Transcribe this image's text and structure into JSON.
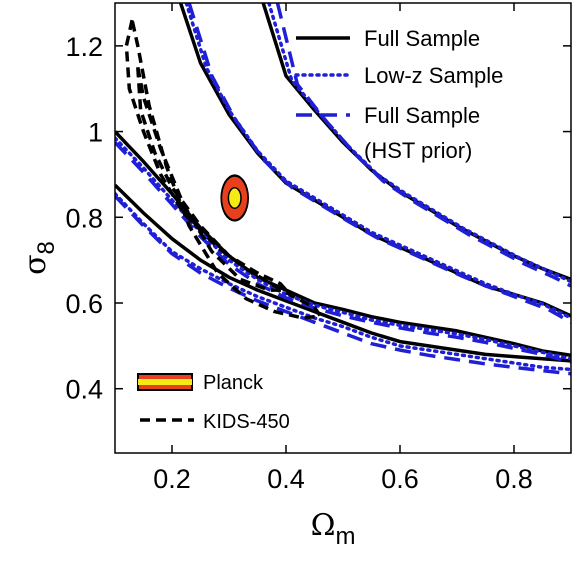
{
  "chart_data": {
    "type": "line",
    "xlabel": "Ωm",
    "ylabel": "σ8",
    "xlim": [
      0.1,
      0.9
    ],
    "ylim": [
      0.25,
      1.3
    ],
    "xticks": [
      0.2,
      0.4,
      0.6,
      0.8
    ],
    "yticks": [
      0.4,
      0.6,
      0.8,
      1.0,
      1.2
    ],
    "xtick_labels": [
      "0.2",
      "0.4",
      "0.6",
      "0.8"
    ],
    "ytick_labels": [
      "0.4",
      "0.6",
      "0.8",
      "1",
      "1.2"
    ],
    "grid": false,
    "legend_top": {
      "placement": "top-right",
      "entries": [
        {
          "label": "Full Sample",
          "line": "solid",
          "color": "#000000"
        },
        {
          "label": "Low-z Sample",
          "line": "dotted",
          "color": "#1f1fd6"
        },
        {
          "label": "Full Sample",
          "label2": "(HST prior)",
          "line": "dashed",
          "color": "#1f1fd6"
        }
      ]
    },
    "legend_bottom": {
      "placement": "bottom-left",
      "entries": [
        {
          "label": "Planck",
          "line": "filled-band",
          "colors": [
            "#e8401c",
            "#f5ea14"
          ]
        },
        {
          "label": "KIDS-450",
          "line": "dashed",
          "color": "#000000"
        }
      ]
    },
    "series": [
      {
        "name": "Full Sample",
        "style": "solid",
        "color": "#000000",
        "contours": [
          [
            [
              0.1,
              0.875
            ],
            [
              0.15,
              0.81
            ],
            [
              0.2,
              0.75
            ],
            [
              0.25,
              0.7
            ],
            [
              0.3,
              0.66
            ],
            [
              0.35,
              0.63
            ],
            [
              0.4,
              0.605
            ],
            [
              0.45,
              0.58
            ],
            [
              0.5,
              0.555
            ],
            [
              0.55,
              0.53
            ],
            [
              0.6,
              0.51
            ],
            [
              0.65,
              0.5
            ],
            [
              0.7,
              0.49
            ],
            [
              0.75,
              0.48
            ],
            [
              0.8,
              0.475
            ],
            [
              0.85,
              0.47
            ],
            [
              0.9,
              0.465
            ]
          ],
          [
            [
              0.1,
              1.0
            ],
            [
              0.15,
              0.93
            ],
            [
              0.2,
              0.855
            ],
            [
              0.25,
              0.775
            ],
            [
              0.3,
              0.71
            ],
            [
              0.35,
              0.66
            ],
            [
              0.4,
              0.63
            ],
            [
              0.45,
              0.6
            ],
            [
              0.5,
              0.585
            ],
            [
              0.55,
              0.568
            ],
            [
              0.6,
              0.555
            ],
            [
              0.65,
              0.545
            ],
            [
              0.7,
              0.535
            ],
            [
              0.75,
              0.52
            ],
            [
              0.8,
              0.505
            ],
            [
              0.85,
              0.488
            ],
            [
              0.9,
              0.478
            ]
          ],
          [
            [
              0.215,
              1.3
            ],
            [
              0.25,
              1.16
            ],
            [
              0.3,
              1.04
            ],
            [
              0.35,
              0.95
            ],
            [
              0.4,
              0.88
            ],
            [
              0.45,
              0.84
            ],
            [
              0.5,
              0.8
            ],
            [
              0.55,
              0.76
            ],
            [
              0.6,
              0.73
            ],
            [
              0.65,
              0.7
            ],
            [
              0.7,
              0.67
            ],
            [
              0.75,
              0.64
            ],
            [
              0.8,
              0.62
            ],
            [
              0.85,
              0.6
            ],
            [
              0.9,
              0.57
            ]
          ],
          [
            [
              0.36,
              1.3
            ],
            [
              0.4,
              1.13
            ],
            [
              0.45,
              1.05
            ],
            [
              0.5,
              0.975
            ],
            [
              0.55,
              0.91
            ],
            [
              0.6,
              0.86
            ],
            [
              0.65,
              0.82
            ],
            [
              0.7,
              0.78
            ],
            [
              0.75,
              0.745
            ],
            [
              0.8,
              0.71
            ],
            [
              0.85,
              0.68
            ],
            [
              0.9,
              0.655
            ]
          ]
        ]
      },
      {
        "name": "Low-z Sample",
        "style": "dotted",
        "color": "#1f1fd6",
        "contours": [
          [
            [
              0.1,
              0.855
            ],
            [
              0.15,
              0.785
            ],
            [
              0.2,
              0.72
            ],
            [
              0.25,
              0.68
            ],
            [
              0.3,
              0.645
            ],
            [
              0.35,
              0.615
            ],
            [
              0.4,
              0.59
            ],
            [
              0.45,
              0.565
            ],
            [
              0.5,
              0.545
            ],
            [
              0.55,
              0.52
            ],
            [
              0.6,
              0.5
            ],
            [
              0.65,
              0.49
            ],
            [
              0.7,
              0.48
            ],
            [
              0.75,
              0.47
            ],
            [
              0.8,
              0.46
            ],
            [
              0.85,
              0.45
            ],
            [
              0.9,
              0.445
            ]
          ],
          [
            [
              0.1,
              0.985
            ],
            [
              0.15,
              0.915
            ],
            [
              0.2,
              0.84
            ],
            [
              0.25,
              0.765
            ],
            [
              0.3,
              0.7
            ],
            [
              0.35,
              0.655
            ],
            [
              0.4,
              0.62
            ],
            [
              0.45,
              0.595
            ],
            [
              0.5,
              0.578
            ],
            [
              0.55,
              0.56
            ],
            [
              0.6,
              0.548
            ],
            [
              0.65,
              0.538
            ],
            [
              0.7,
              0.528
            ],
            [
              0.75,
              0.515
            ],
            [
              0.8,
              0.5
            ],
            [
              0.85,
              0.485
            ],
            [
              0.9,
              0.47
            ]
          ],
          [
            [
              0.225,
              1.3
            ],
            [
              0.26,
              1.15
            ],
            [
              0.3,
              1.05
            ],
            [
              0.35,
              0.955
            ],
            [
              0.4,
              0.885
            ],
            [
              0.45,
              0.845
            ],
            [
              0.5,
              0.805
            ],
            [
              0.55,
              0.765
            ],
            [
              0.6,
              0.735
            ],
            [
              0.65,
              0.705
            ],
            [
              0.7,
              0.675
            ],
            [
              0.75,
              0.645
            ],
            [
              0.8,
              0.62
            ],
            [
              0.85,
              0.598
            ],
            [
              0.9,
              0.565
            ]
          ],
          [
            [
              0.37,
              1.3
            ],
            [
              0.41,
              1.12
            ],
            [
              0.46,
              1.04
            ],
            [
              0.51,
              0.965
            ],
            [
              0.56,
              0.9
            ],
            [
              0.61,
              0.855
            ],
            [
              0.66,
              0.815
            ],
            [
              0.71,
              0.775
            ],
            [
              0.76,
              0.74
            ],
            [
              0.81,
              0.705
            ],
            [
              0.86,
              0.675
            ],
            [
              0.9,
              0.65
            ]
          ]
        ]
      },
      {
        "name": "Full Sample (HST prior)",
        "style": "dashed",
        "color": "#1f1fd6",
        "contours": [
          [
            [
              0.1,
              0.85
            ],
            [
              0.15,
              0.78
            ],
            [
              0.2,
              0.715
            ],
            [
              0.25,
              0.67
            ],
            [
              0.3,
              0.635
            ],
            [
              0.35,
              0.605
            ],
            [
              0.4,
              0.58
            ],
            [
              0.45,
              0.555
            ],
            [
              0.5,
              0.53
            ],
            [
              0.55,
              0.505
            ],
            [
              0.6,
              0.49
            ],
            [
              0.65,
              0.478
            ],
            [
              0.7,
              0.468
            ],
            [
              0.75,
              0.458
            ],
            [
              0.8,
              0.45
            ],
            [
              0.85,
              0.442
            ],
            [
              0.9,
              0.435
            ]
          ],
          [
            [
              0.1,
              0.975
            ],
            [
              0.15,
              0.905
            ],
            [
              0.2,
              0.83
            ],
            [
              0.25,
              0.755
            ],
            [
              0.3,
              0.69
            ],
            [
              0.35,
              0.645
            ],
            [
              0.4,
              0.612
            ],
            [
              0.45,
              0.588
            ],
            [
              0.5,
              0.57
            ],
            [
              0.55,
              0.555
            ],
            [
              0.6,
              0.542
            ],
            [
              0.65,
              0.53
            ],
            [
              0.7,
              0.52
            ],
            [
              0.75,
              0.508
            ],
            [
              0.8,
              0.494
            ],
            [
              0.85,
              0.48
            ],
            [
              0.9,
              0.462
            ]
          ],
          [
            [
              0.23,
              1.3
            ],
            [
              0.27,
              1.13
            ],
            [
              0.31,
              1.03
            ],
            [
              0.36,
              0.935
            ],
            [
              0.41,
              0.87
            ],
            [
              0.46,
              0.83
            ],
            [
              0.51,
              0.79
            ],
            [
              0.56,
              0.752
            ],
            [
              0.61,
              0.722
            ],
            [
              0.66,
              0.692
            ],
            [
              0.71,
              0.662
            ],
            [
              0.76,
              0.635
            ],
            [
              0.81,
              0.61
            ],
            [
              0.86,
              0.585
            ],
            [
              0.9,
              0.555
            ]
          ],
          [
            [
              0.385,
              1.3
            ],
            [
              0.42,
              1.11
            ],
            [
              0.47,
              1.025
            ],
            [
              0.52,
              0.95
            ],
            [
              0.57,
              0.885
            ],
            [
              0.62,
              0.84
            ],
            [
              0.67,
              0.8
            ],
            [
              0.72,
              0.76
            ],
            [
              0.77,
              0.725
            ],
            [
              0.82,
              0.69
            ],
            [
              0.87,
              0.66
            ],
            [
              0.9,
              0.64
            ]
          ]
        ]
      },
      {
        "name": "KIDS-450",
        "style": "dashed",
        "color": "#000000",
        "contours": [
          [
            [
              0.13,
              1.26
            ],
            [
              0.12,
              1.2
            ],
            [
              0.125,
              1.1
            ],
            [
              0.15,
              1.0
            ],
            [
              0.18,
              0.9
            ],
            [
              0.22,
              0.81
            ],
            [
              0.28,
              0.73
            ],
            [
              0.33,
              0.68
            ],
            [
              0.38,
              0.64
            ],
            [
              0.42,
              0.61
            ],
            [
              0.45,
              0.59
            ],
            [
              0.46,
              0.57
            ],
            [
              0.43,
              0.565
            ],
            [
              0.38,
              0.58
            ],
            [
              0.33,
              0.61
            ],
            [
              0.28,
              0.67
            ],
            [
              0.23,
              0.78
            ],
            [
              0.19,
              0.92
            ],
            [
              0.16,
              1.06
            ],
            [
              0.14,
              1.2
            ],
            [
              0.13,
              1.26
            ]
          ],
          [
            [
              0.14,
              1.15
            ],
            [
              0.145,
              1.05
            ],
            [
              0.17,
              0.95
            ],
            [
              0.2,
              0.87
            ],
            [
              0.25,
              0.78
            ],
            [
              0.3,
              0.71
            ],
            [
              0.35,
              0.67
            ],
            [
              0.39,
              0.645
            ],
            [
              0.4,
              0.63
            ],
            [
              0.37,
              0.63
            ],
            [
              0.32,
              0.655
            ],
            [
              0.27,
              0.72
            ],
            [
              0.22,
              0.83
            ],
            [
              0.18,
              0.96
            ],
            [
              0.15,
              1.08
            ],
            [
              0.14,
              1.15
            ]
          ]
        ]
      }
    ],
    "planck": {
      "center": [
        0.31,
        0.845
      ],
      "outer_radius": [
        0.025,
        0.055
      ],
      "inner_radius": [
        0.017,
        0.037
      ],
      "core_radius": [
        0.011,
        0.024
      ],
      "colors": [
        "#000000",
        "#e8401c",
        "#f5ea14"
      ]
    }
  }
}
